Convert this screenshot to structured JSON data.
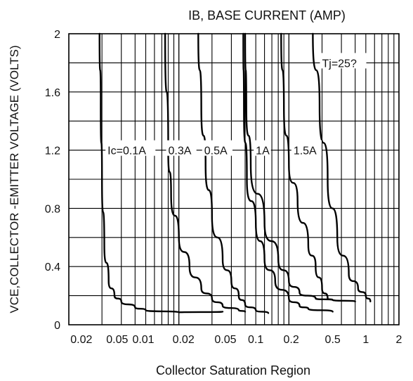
{
  "chart_data": {
    "type": "line",
    "title": "IB, BASE CURRENT (AMP)",
    "xlabel": "Collector Saturation Region",
    "ylabel": "VCE,COLLECTOR -EMITTER VOLTAGE (VOLTS)",
    "ylim": [
      0,
      2
    ],
    "yticks": [
      "0",
      "0.4",
      "0.8",
      "1.2",
      "1.6",
      "2"
    ],
    "xticks": [
      "0.02",
      "0.05",
      "0.01",
      "0.02",
      "0.05",
      "0.1",
      "0.2",
      "0.5",
      "1",
      "2"
    ],
    "x_scale": "log",
    "x_decades": [
      {
        "min": 0.002,
        "max": 0.02
      },
      {
        "min": 0.01,
        "max": 0.1
      },
      {
        "min": 0.1,
        "max": 2
      }
    ],
    "grid": true,
    "annotation": "Tj=25?",
    "series": [
      {
        "name": "Ic=0.1A",
        "points": [
          [
            0.0038,
            2.0
          ],
          [
            0.0039,
            1.5
          ],
          [
            0.004,
            1.0
          ],
          [
            0.0042,
            0.55
          ],
          [
            0.0046,
            0.3
          ],
          [
            0.0052,
            0.2
          ],
          [
            0.006,
            0.16
          ],
          [
            0.008,
            0.12
          ],
          [
            0.01,
            0.1
          ],
          [
            0.02,
            0.085
          ],
          [
            0.05,
            0.09
          ]
        ]
      },
      {
        "name": "0.3A",
        "points": [
          [
            0.015,
            2.0
          ],
          [
            0.016,
            1.2
          ],
          [
            0.017,
            0.9
          ],
          [
            0.02,
            0.6
          ],
          [
            0.025,
            0.4
          ],
          [
            0.032,
            0.25
          ],
          [
            0.04,
            0.18
          ],
          [
            0.05,
            0.13
          ],
          [
            0.07,
            0.1
          ],
          [
            0.08,
            0.09
          ]
        ]
      },
      {
        "name": "0.5A",
        "points": [
          [
            0.03,
            2.0
          ],
          [
            0.032,
            1.5
          ],
          [
            0.035,
            1.1
          ],
          [
            0.04,
            0.75
          ],
          [
            0.05,
            0.45
          ],
          [
            0.06,
            0.3
          ],
          [
            0.07,
            0.2
          ],
          [
            0.08,
            0.14
          ],
          [
            0.1,
            0.1
          ],
          [
            0.13,
            0.08
          ]
        ]
      },
      {
        "name": "1A",
        "points": [
          [
            0.077,
            2.0
          ],
          [
            0.078,
            1.5
          ],
          [
            0.083,
            1.0
          ],
          [
            0.1,
            0.7
          ],
          [
            0.12,
            0.45
          ],
          [
            0.15,
            0.3
          ],
          [
            0.2,
            0.18
          ],
          [
            0.25,
            0.13
          ],
          [
            0.3,
            0.11
          ],
          [
            0.5,
            0.09
          ]
        ]
      },
      {
        "name": "1.5A",
        "points": [
          [
            0.17,
            2.0
          ],
          [
            0.18,
            1.5
          ],
          [
            0.2,
            1.1
          ],
          [
            0.24,
            0.85
          ],
          [
            0.3,
            0.55
          ],
          [
            0.35,
            0.4
          ],
          [
            0.4,
            0.25
          ],
          [
            0.45,
            0.18
          ],
          [
            0.5,
            0.17
          ]
        ]
      },
      {
        "name": "",
        "points": [
          [
            0.08,
            2.0
          ],
          [
            0.082,
            1.5
          ],
          [
            0.09,
            1.1
          ],
          [
            0.12,
            0.7
          ],
          [
            0.16,
            0.45
          ],
          [
            0.2,
            0.3
          ],
          [
            0.25,
            0.22
          ],
          [
            0.35,
            0.18
          ],
          [
            0.5,
            0.17
          ],
          [
            0.8,
            0.16
          ]
        ]
      },
      {
        "name": "",
        "points": [
          [
            0.33,
            2.0
          ],
          [
            0.38,
            1.5
          ],
          [
            0.45,
            1.0
          ],
          [
            0.55,
            0.6
          ],
          [
            0.7,
            0.35
          ],
          [
            0.85,
            0.25
          ],
          [
            1.0,
            0.2
          ],
          [
            1.1,
            0.16
          ]
        ]
      }
    ],
    "labels": [
      "Ic=0.1A",
      "0.3A",
      "0.5A",
      "1A",
      "1.5A"
    ]
  }
}
